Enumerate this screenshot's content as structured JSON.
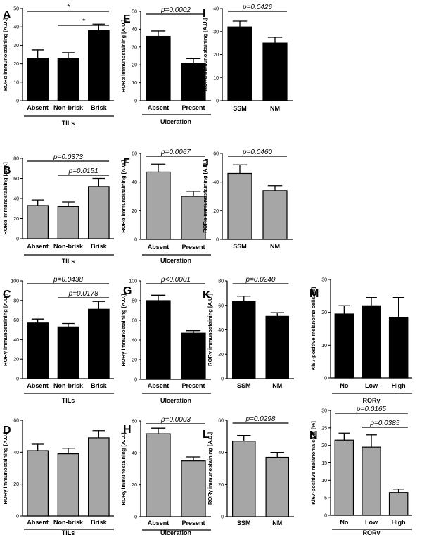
{
  "colors": {
    "black_bar": "#000000",
    "gray_bar": "#a6a6a6",
    "axis": "#000000"
  },
  "chart_data": [
    {
      "panel": "A",
      "type": "bar",
      "title": "",
      "ylabel": "RORα immunostaining [A.U.]",
      "xlabel": "TILs",
      "group_label": "TILs",
      "categories": [
        "Absent",
        "Non-brisk",
        "Brisk"
      ],
      "values": [
        23,
        23,
        38
      ],
      "errors": [
        4.5,
        3,
        3.5
      ],
      "ylim": [
        0,
        50
      ],
      "ticks": [
        0,
        10,
        20,
        30,
        40,
        50
      ],
      "color": "black",
      "brackets": [
        {
          "from": 0,
          "to": 2,
          "label": "*"
        },
        {
          "from": 1,
          "to": 2,
          "label": "*"
        }
      ]
    },
    {
      "panel": "B",
      "type": "bar",
      "title": "",
      "ylabel": "RORα immunostaining [A.U.]",
      "xlabel": "TILs",
      "group_label": "TILs",
      "categories": [
        "Absent",
        "Non-brisk",
        "Brisk"
      ],
      "values": [
        33,
        32,
        52
      ],
      "errors": [
        5.5,
        4.5,
        8
      ],
      "ylim": [
        0,
        80
      ],
      "ticks": [
        0,
        20,
        40,
        60,
        80
      ],
      "color": "gray",
      "brackets": [
        {
          "from": 0,
          "to": 2,
          "label": "p=0.0373"
        },
        {
          "from": 1,
          "to": 2,
          "label": "p=0.0151"
        }
      ]
    },
    {
      "panel": "C",
      "type": "bar",
      "title": "",
      "ylabel": "RORγ immunostaining [A.U.]",
      "xlabel": "TILs",
      "group_label": "TILs",
      "categories": [
        "Absent",
        "Non-brisk",
        "Brisk"
      ],
      "values": [
        57,
        53,
        71
      ],
      "errors": [
        4,
        3.5,
        8
      ],
      "ylim": [
        0,
        100
      ],
      "ticks": [
        0,
        20,
        40,
        60,
        80,
        100
      ],
      "color": "black",
      "brackets": [
        {
          "from": 0,
          "to": 2,
          "label": "p=0.0438"
        },
        {
          "from": 1,
          "to": 2,
          "label": "p=0.0178"
        }
      ]
    },
    {
      "panel": "D",
      "type": "bar",
      "title": "",
      "ylabel": "RORγ immunostaining [A.U.]",
      "xlabel": "TILs",
      "group_label": "TILs",
      "categories": [
        "Absent",
        "Non-brisk",
        "Brisk"
      ],
      "values": [
        41,
        39,
        49
      ],
      "errors": [
        4,
        3.5,
        4.5
      ],
      "ylim": [
        0,
        60
      ],
      "ticks": [
        0,
        20,
        40,
        60
      ],
      "color": "gray",
      "brackets": []
    },
    {
      "panel": "E",
      "type": "bar",
      "title": "",
      "ylabel": "RORα immunostaining [A.U.]",
      "xlabel": "Ulceration",
      "group_label": "Ulceration",
      "categories": [
        "Absent",
        "Present"
      ],
      "values": [
        36,
        21
      ],
      "errors": [
        3,
        2.5
      ],
      "ylim": [
        0,
        50
      ],
      "ticks": [
        0,
        10,
        20,
        30,
        40,
        50
      ],
      "color": "black",
      "brackets": [
        {
          "from": 0,
          "to": 1,
          "label": "p=0.0002"
        }
      ]
    },
    {
      "panel": "F",
      "type": "bar",
      "title": "",
      "ylabel": "RORα immunostaining [A.U.]",
      "xlabel": "Ulceration",
      "group_label": "Ulceration",
      "categories": [
        "Absent",
        "Present"
      ],
      "values": [
        47,
        30
      ],
      "errors": [
        5.5,
        3.5
      ],
      "ylim": [
        0,
        60
      ],
      "ticks": [
        0,
        20,
        40,
        60
      ],
      "color": "gray",
      "brackets": [
        {
          "from": 0,
          "to": 1,
          "label": "p=0.0067"
        }
      ]
    },
    {
      "panel": "G",
      "type": "bar",
      "title": "",
      "ylabel": "RORγ immunostaining [A.U.]",
      "xlabel": "Ulceration",
      "group_label": "Ulceration",
      "categories": [
        "Absent",
        "Present"
      ],
      "values": [
        80,
        47
      ],
      "errors": [
        5.5,
        2.5
      ],
      "ylim": [
        0,
        100
      ],
      "ticks": [
        0,
        20,
        40,
        60,
        80,
        100
      ],
      "color": "black",
      "brackets": [
        {
          "from": 0,
          "to": 1,
          "label": "p<0.0001"
        }
      ]
    },
    {
      "panel": "H",
      "type": "bar",
      "title": "",
      "ylabel": "RORγ immunostaining [A.U.]",
      "xlabel": "Ulceration",
      "group_label": "Ulceration",
      "categories": [
        "Absent",
        "Present"
      ],
      "values": [
        52,
        35
      ],
      "errors": [
        3.5,
        2.5
      ],
      "ylim": [
        0,
        60
      ],
      "ticks": [
        0,
        20,
        40,
        60
      ],
      "color": "gray",
      "brackets": [
        {
          "from": 0,
          "to": 1,
          "label": "p=0.0003"
        }
      ]
    },
    {
      "panel": "I",
      "type": "bar",
      "title": "",
      "ylabel": "RORα immunostaining [A.U.]",
      "xlabel": "",
      "group_label": "",
      "categories": [
        "SSM",
        "NM"
      ],
      "values": [
        32,
        25
      ],
      "errors": [
        2.5,
        2.5
      ],
      "ylim": [
        0,
        40
      ],
      "ticks": [
        0,
        10,
        20,
        30,
        40
      ],
      "color": "black",
      "brackets": [
        {
          "from": 0,
          "to": 1,
          "label": "p=0.0426"
        }
      ]
    },
    {
      "panel": "J",
      "type": "bar",
      "title": "",
      "ylabel": "RORα immunostaining [A.U.]",
      "xlabel": "",
      "group_label": "",
      "categories": [
        "SSM",
        "NM"
      ],
      "values": [
        46,
        34
      ],
      "errors": [
        6,
        3.5
      ],
      "ylim": [
        0,
        60
      ],
      "ticks": [
        0,
        20,
        40,
        60
      ],
      "color": "gray",
      "brackets": [
        {
          "from": 0,
          "to": 1,
          "label": "p=0.0460"
        }
      ]
    },
    {
      "panel": "K",
      "type": "bar",
      "title": "",
      "ylabel": "RORγ immunostaining [A.U.]",
      "xlabel": "",
      "group_label": "",
      "categories": [
        "SSM",
        "NM"
      ],
      "values": [
        63,
        51
      ],
      "errors": [
        4.5,
        3
      ],
      "ylim": [
        0,
        80
      ],
      "ticks": [
        0,
        20,
        40,
        60,
        80
      ],
      "color": "black",
      "brackets": [
        {
          "from": 0,
          "to": 1,
          "label": "p=0.0240"
        }
      ]
    },
    {
      "panel": "L",
      "type": "bar",
      "title": "",
      "ylabel": "RORγ immunostaining [A.U.]",
      "xlabel": "",
      "group_label": "",
      "categories": [
        "SSM",
        "NM"
      ],
      "values": [
        47,
        37
      ],
      "errors": [
        3.5,
        3
      ],
      "ylim": [
        0,
        60
      ],
      "ticks": [
        0,
        20,
        40,
        60
      ],
      "color": "gray",
      "brackets": [
        {
          "from": 0,
          "to": 1,
          "label": "p=0.0298"
        }
      ]
    },
    {
      "panel": "M",
      "type": "bar",
      "title": "",
      "ylabel": "Ki67-positive melanoma cells [%]",
      "xlabel": "RORγ",
      "group_label": "RORγ",
      "categories": [
        "No",
        "Low",
        "High"
      ],
      "values": [
        19.5,
        22,
        18.5
      ],
      "errors": [
        2.5,
        2.5,
        6
      ],
      "ylim": [
        0,
        30
      ],
      "ticks": [
        0,
        10,
        20,
        30
      ],
      "color": "black",
      "brackets": []
    },
    {
      "panel": "N",
      "type": "bar",
      "title": "",
      "ylabel": "Ki67-positive melanoma cells [%]",
      "xlabel": "RORγ",
      "group_label": "RORγ",
      "categories": [
        "No",
        "Low",
        "High"
      ],
      "values": [
        21.5,
        19.5,
        6.5
      ],
      "errors": [
        2,
        3.5,
        1
      ],
      "ylim": [
        0,
        30
      ],
      "ticks": [
        0,
        5,
        10,
        15,
        20,
        25,
        30
      ],
      "color": "gray",
      "brackets": [
        {
          "from": 0,
          "to": 2,
          "label": "p=0.0165"
        },
        {
          "from": 1,
          "to": 2,
          "label": "p=0.0385"
        }
      ]
    }
  ]
}
